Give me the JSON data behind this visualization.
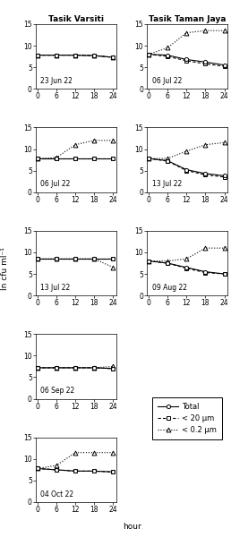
{
  "col1_title": "Tasik Varsiti",
  "col2_title": "Tasik Taman Jaya",
  "ylabel": "ln cfu ml⁻¹",
  "xlabel": "hour",
  "x": [
    0,
    6,
    12,
    18,
    24
  ],
  "ylim": [
    0,
    15
  ],
  "yticks": [
    0,
    5,
    10,
    15
  ],
  "xticks": [
    0,
    6,
    12,
    18,
    24
  ],
  "panels": [
    {
      "label": "23 Jun 22",
      "col": 0,
      "total": [
        7.8,
        7.8,
        7.8,
        7.7,
        7.3
      ],
      "lt20": [
        7.8,
        7.8,
        7.8,
        7.7,
        7.3
      ],
      "lt02": [
        7.8,
        7.8,
        7.8,
        7.7,
        7.3
      ]
    },
    {
      "label": "06 Jul 22",
      "col": 1,
      "total": [
        8.0,
        7.8,
        6.8,
        6.2,
        5.5
      ],
      "lt20": [
        8.0,
        7.5,
        6.5,
        5.8,
        5.2
      ],
      "lt02": [
        8.0,
        9.5,
        13.0,
        13.5,
        13.5
      ]
    },
    {
      "label": "06 Jul 22",
      "col": 0,
      "total": [
        7.8,
        7.8,
        7.8,
        7.8,
        7.8
      ],
      "lt20": [
        7.8,
        7.8,
        7.8,
        7.8,
        7.8
      ],
      "lt02": [
        7.8,
        8.0,
        11.0,
        12.0,
        12.0
      ]
    },
    {
      "label": "13 Jul 22",
      "col": 1,
      "total": [
        7.8,
        7.3,
        5.2,
        4.3,
        3.8
      ],
      "lt20": [
        7.8,
        7.2,
        5.0,
        4.0,
        3.5
      ],
      "lt02": [
        7.8,
        7.8,
        9.5,
        11.0,
        11.5
      ]
    },
    {
      "label": "13 Jul 22",
      "col": 0,
      "total": [
        8.5,
        8.5,
        8.5,
        8.5,
        8.5
      ],
      "lt20": [
        8.5,
        8.5,
        8.5,
        8.5,
        8.5
      ],
      "lt02": [
        8.5,
        8.5,
        8.5,
        8.5,
        6.5
      ]
    },
    {
      "label": "09 Aug 22",
      "col": 1,
      "total": [
        8.0,
        7.5,
        6.5,
        5.5,
        5.0
      ],
      "lt20": [
        8.0,
        7.5,
        6.3,
        5.3,
        5.0
      ],
      "lt02": [
        8.0,
        8.0,
        8.5,
        11.0,
        11.0
      ]
    },
    {
      "label": "06 Sep 22",
      "col": 0,
      "total": [
        7.2,
        7.2,
        7.2,
        7.2,
        7.0
      ],
      "lt20": [
        7.2,
        7.2,
        7.2,
        7.2,
        7.0
      ],
      "lt02": [
        7.2,
        7.2,
        7.2,
        7.2,
        7.5
      ]
    },
    {
      "label": "04 Oct 22",
      "col": 0,
      "total": [
        7.8,
        7.5,
        7.2,
        7.2,
        7.0
      ],
      "lt20": [
        7.8,
        7.5,
        7.2,
        7.2,
        7.0
      ],
      "lt02": [
        7.8,
        8.5,
        11.5,
        11.5,
        11.5
      ]
    }
  ],
  "legend_labels": [
    "Total",
    "< 20 µm",
    "< 0.2 µm"
  ]
}
